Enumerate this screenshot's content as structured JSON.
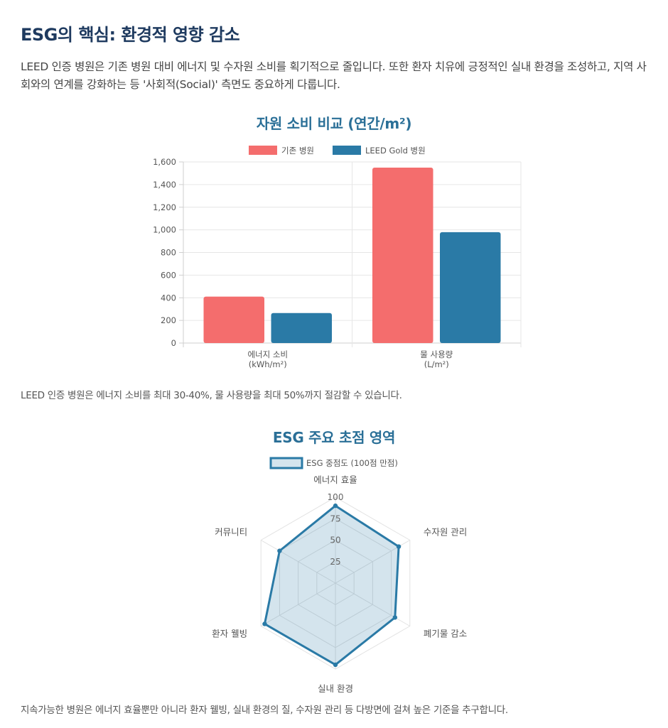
{
  "heading": "ESG의 핵심: 환경적 영향 감소",
  "intro": "LEED 인증 병원은 기존 병원 대비 에너지 및 수자원 소비를 획기적으로 줄입니다. 또한 환자 치유에 긍정적인 실내 환경을 조성하고, 지역 사회와의 연계를 강화하는 등 '사회적(Social)' 측면도 중요하게 다룹니다.",
  "colors": {
    "red": "#f46d6d",
    "blue": "#2a7aa6"
  },
  "chart_data": [
    {
      "type": "bar",
      "title": "자원 소비 비교 (연간/m²)",
      "categories": [
        [
          "에너지 소비",
          "(kWh/m²)"
        ],
        [
          "물 사용량",
          "(L/m²)"
        ]
      ],
      "series": [
        {
          "name": "기존 병원",
          "values": [
            410,
            1550
          ],
          "color": "#f46d6d"
        },
        {
          "name": "LEED Gold 병원",
          "values": [
            265,
            980
          ],
          "color": "#2a7aa6"
        }
      ],
      "ylim": [
        0,
        1600
      ],
      "yticks": [
        "0",
        "200",
        "400",
        "600",
        "800",
        "1,000",
        "1,200",
        "1,400",
        "1,600"
      ],
      "grid": true,
      "legend": "top"
    },
    {
      "type": "radar",
      "title": "ESG 주요 초점 영역",
      "categories": [
        "에너지 효율",
        "수자원 관리",
        "폐기물 감소",
        "실내 환경",
        "환자 웰빙",
        "커뮤니티"
      ],
      "series": [
        {
          "name": "ESG 중점도 (100점 만점)",
          "values": [
            90,
            85,
            80,
            95,
            95,
            75
          ],
          "color": "#2a7aa6"
        }
      ],
      "rlim": [
        0,
        100
      ],
      "rticks": [
        "25",
        "50",
        "75",
        "100"
      ],
      "legend": "top"
    }
  ],
  "captions": {
    "bar": "LEED 인증 병원은 에너지 소비를 최대 30-40%, 물 사용량을 최대 50%까지 절감할 수 있습니다.",
    "radar": "지속가능한 병원은 에너지 효율뿐만 아니라 환자 웰빙, 실내 환경의 질, 수자원 관리 등 다방면에 걸쳐 높은 기준을 추구합니다."
  }
}
